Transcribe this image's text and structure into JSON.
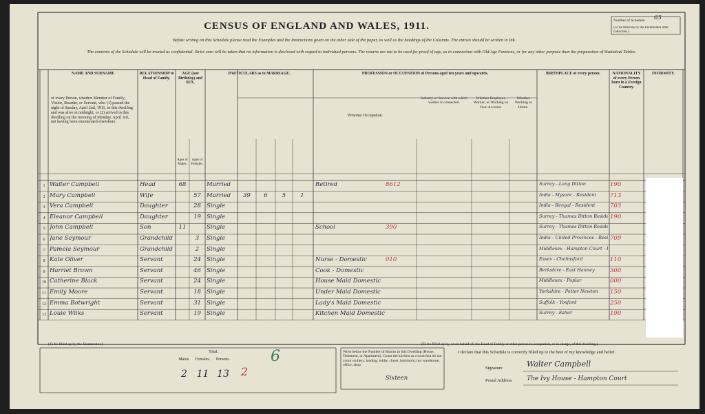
{
  "header": {
    "title": "CENSUS OF ENGLAND AND WALES, 1911.",
    "schedule_label": "Number of Schedule",
    "schedule_number": "63",
    "schedule_note": "(To be filled up by the Enumerator after collection.)",
    "instruction": "Before writing on this Schedule please read the Examples and the Instructions given on the other side of the paper, as well as the headings of the Columns. The entries should be written in Ink.",
    "confidential": "The contents of the Schedule will be treated as confidential. Strict care will be taken that no information is disclosed with regard to individual persons. The returns are not to be used for proof of age, as in connection with Old Age Pensions, or for any other purpose than the preparation of Statistical Tables."
  },
  "columns": [
    "NAME AND SURNAME",
    "RELATIONSHIP to Head of Family.",
    "AGE (last Birthday) and SEX.",
    "PARTICULARS as to MARRIAGE.",
    "PROFESSION or OCCUPATION of Persons aged ten years and upwards.",
    "BIRTHPLACE of every person.",
    "NATIONALITY of every Person born in a Foreign Country.",
    "INFIRMITY."
  ],
  "subcolumns": {
    "name": "of every Person, whether Member of Family, Visitor, Boarder, or Servant, who (1) passed the night of Sunday, April 2nd, 1911, in this dwelling and was alive at midnight, or (2) arrived in this dwelling on the morning of Monday, April 3rd, not having been enumerated elsewhere.",
    "age_males": "Ages of Males.",
    "age_females": "Ages of Females.",
    "personal_occupation": "Personal Occupation.",
    "industry": "Industry or Service with which worker is connected.",
    "employer": "Whether Employer, Worker, or Working on Own Account.",
    "at_home": "Whether Working at Home."
  },
  "rows": [
    {
      "number": "1",
      "name": "Walter Campbell",
      "relationship": "Head",
      "age_male": "68",
      "marital": "Married",
      "occupation": "Retired",
      "occupation_code": "8612",
      "birthplace": "Surrey - Long Ditton",
      "birthplace_code": "190"
    },
    {
      "number": "2",
      "name": "Mary Campbell",
      "relationship": "Wife",
      "age_female": "57",
      "marital": "Married",
      "years_married": "39",
      "children_born": "6",
      "children_living": "5",
      "children_died": "1",
      "birthplace": "India - Mysore - Resident",
      "birthplace_code": "713"
    },
    {
      "number": "3",
      "name": "Vera Campbell",
      "relationship": "Daughter",
      "age_female": "28",
      "marital": "Single",
      "birthplace": "India - Bengal - Resident",
      "birthplace_code": "703"
    },
    {
      "number": "4",
      "name": "Eleanor Campbell",
      "relationship": "Daughter",
      "age_female": "19",
      "marital": "Single",
      "birthplace": "Surrey - Thames Ditton Resident",
      "birthplace_code": "190"
    },
    {
      "number": "5",
      "name": "John Campbell",
      "relationship": "Son",
      "age_male": "11",
      "marital": "Single",
      "occupation": "School",
      "occupation_code": "390",
      "birthplace": "Surrey - Thames Ditton Resident"
    },
    {
      "number": "6",
      "name": "Jane Seymour",
      "relationship": "Grandchild",
      "age_female": "3",
      "marital": "Single",
      "birthplace": "India - United Provinces - Resident",
      "birthplace_code": "709"
    },
    {
      "number": "7",
      "name": "Pamela Seymour",
      "relationship": "Grandchild",
      "age_female": "2",
      "marital": "Single",
      "birthplace": "Middlesex - Hampton Court - Resident"
    },
    {
      "number": "8",
      "name": "Kate Oliver",
      "relationship": "Servant",
      "age_female": "24",
      "marital": "Single",
      "occupation": "Nurse - Domestic",
      "occupation_code": "010",
      "birthplace": "Essex - Chelmsford",
      "birthplace_code": "110"
    },
    {
      "number": "9",
      "name": "Harriet Brown",
      "relationship": "Servant",
      "age_female": "46",
      "marital": "Single",
      "occupation": "Cook - Domestic",
      "birthplace": "Berkshire - East Hanney",
      "birthplace_code": "300"
    },
    {
      "number": "10",
      "name": "Catherine Black",
      "relationship": "Servant",
      "age_female": "24",
      "marital": "Single",
      "occupation": "House Maid Domestic",
      "birthplace": "Middlesex - Poplar",
      "birthplace_code": "000"
    },
    {
      "number": "11",
      "name": "Emily Moore",
      "relationship": "Servant",
      "age_female": "18",
      "marital": "Single",
      "occupation": "Under Maid Domestic",
      "birthplace": "Yorkshire - Potter Newton",
      "birthplace_code": "150"
    },
    {
      "number": "12",
      "name": "Emma Botwright",
      "relationship": "Servant",
      "age_female": "31",
      "marital": "Single",
      "occupation": "Lady's Maid Domestic",
      "birthplace": "Suffolk - Yoxford",
      "birthplace_code": "250"
    },
    {
      "number": "13",
      "name": "Louie Wilks",
      "relationship": "Servant",
      "age_female": "19",
      "marital": "Single",
      "occupation": "Kitchen Maid Domestic",
      "birthplace": "Surrey - Esher",
      "birthplace_code": "190"
    }
  ],
  "footer": {
    "enumerator_note": "(To be filled up by the Enumerator.)",
    "total_label": "Total.",
    "males_label": "Males.",
    "females_label": "Females.",
    "persons_label": "Persons.",
    "males": "2",
    "females": "11",
    "persons": "13",
    "mark_a": "2",
    "mark_b": "6",
    "head_note": "(To be filled up by, or on behalf of, the Head of Family or other person in occupation, or in charge, of this dwelling.)",
    "rooms_label": "Write below the Number of Rooms in this Dwelling (House, Tenement, or Apartment). Count the kitchen as a room but do not count scullery, landing, lobby, closet, bathroom; nor warehouse, office, shop.",
    "rooms": "Sixteen",
    "declaration": "I declare that this Schedule is correctly filled up to the best of my knowledge and belief.",
    "signature_label": "Signature",
    "signature": "Walter Campbell",
    "address_label": "Postal Address",
    "address": "The Ivy House - Hampton Court"
  }
}
